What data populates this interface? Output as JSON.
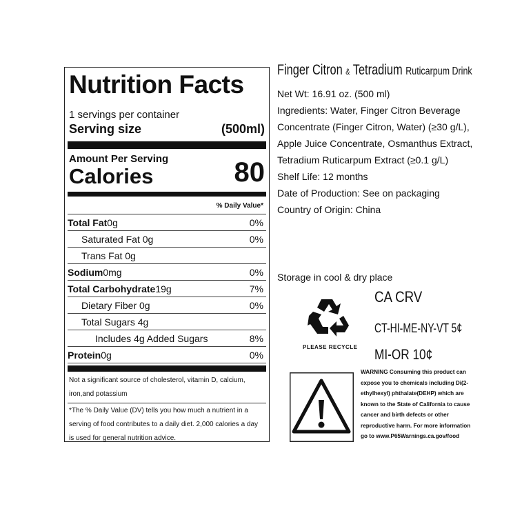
{
  "nutrition": {
    "title": "Nutrition Facts",
    "servings": "1 servings per container",
    "serving_size_label": "Serving size",
    "serving_size_value": "(500ml)",
    "amount_per_serving": "Amount Per Serving",
    "calories_label": "Calories",
    "calories_value": "80",
    "daily_value_header": "% Daily Value*",
    "rows": [
      {
        "label": "Total Fat",
        "amount": "0g",
        "dv": "0%"
      },
      {
        "label": "Saturated Fat 0g",
        "amount": "",
        "dv": "0%"
      },
      {
        "label": "Trans Fat 0g",
        "amount": "",
        "dv": ""
      },
      {
        "label": "Sodium",
        "amount": "0mg",
        "dv": "0%"
      },
      {
        "label": "Total Carbohydrate",
        "amount": "19g",
        "dv": "7%"
      },
      {
        "label": "Dietary Fiber 0g",
        "amount": "",
        "dv": "0%"
      },
      {
        "label": "Total Sugars 4g",
        "amount": "",
        "dv": ""
      },
      {
        "label": "Includes 4g Added Sugars",
        "amount": "",
        "dv": "8%"
      },
      {
        "label": "Protein",
        "amount": "0g",
        "dv": "0%"
      }
    ],
    "note": "Not a significant source of cholesterol, vitamin D, calcium, iron,and potassium",
    "footnote": "*The % Daily Value (DV) tells you how much a nutrient in a serving of food contributes to a daily diet. 2,000 calories a day is used for general nutrition advice."
  },
  "info": {
    "product_name_a": "Finger Citron",
    "product_amp": "&",
    "product_name_b": "Tetradium",
    "product_name_c": "Ruticarpum Drink",
    "lines": [
      "Net Wt:  16.91 oz. (500 ml)",
      "Ingredients: Water, Finger Citron Beverage",
      "Concentrate (Finger Citron, Water) (≥30 g/L),",
      "Apple Juice Concentrate, Osmanthus Extract,",
      "Tetradium Ruticarpum Extract (≥0.1 g/L)",
      "Shelf Life: 12 months",
      "Date of Production: See on packaging",
      "Country of Origin: China"
    ],
    "storage": "Storage in cool & dry place",
    "recycle_label": "PLEASE RECYCLE",
    "crv": "CA CRV",
    "deposit_5": "CT-HI-ME-NY-VT 5¢",
    "deposit_10": "MI-OR 10¢",
    "warning_lines": [
      "WARNING Consuming this product can",
      "expose you to chemicals including Di(2-",
      "ethylhexyl) phthalate(DEHP) which are",
      "known to the State of California to cause",
      "cancer and birth defects or other",
      "reproductive harm. For more information",
      "go to www.P65Warnings.ca.gov/food"
    ],
    "icons": {
      "recycle": "recycle-icon",
      "warning": "warning-triangle-icon"
    }
  }
}
